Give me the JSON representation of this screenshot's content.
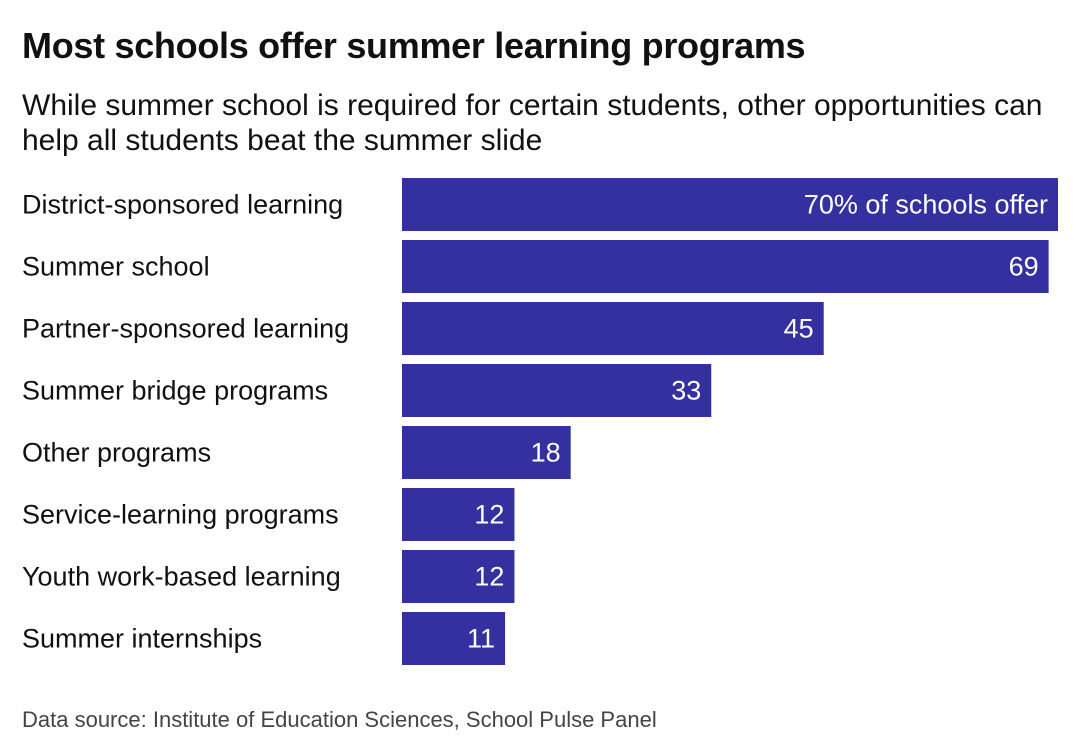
{
  "title": "Most schools offer summer learning programs",
  "subtitle": "While summer school is required for certain students, other opportunities can help all students beat the summer slide",
  "source": "Data source: Institute of Education Sciences, School Pulse Panel",
  "colors": {
    "bar": "#3430a0",
    "value_text": "#ffffff",
    "label_text": "#111111"
  },
  "chart_data": {
    "type": "bar",
    "orientation": "horizontal",
    "title": "Most schools offer summer learning programs",
    "subtitle": "While summer school is required for certain students, other opportunities can help all students beat the summer slide",
    "categories": [
      "District-sponsored learning",
      "Summer school",
      "Partner-sponsored learning",
      "Summer bridge programs",
      "Other programs",
      "Service-learning programs",
      "Youth work-based learning",
      "Summer internships"
    ],
    "values": [
      70,
      69,
      45,
      33,
      18,
      12,
      12,
      11
    ],
    "value_labels": [
      "70% of schools offer",
      "69",
      "45",
      "33",
      "18",
      "12",
      "12",
      "11"
    ],
    "xlim": [
      0,
      70
    ],
    "grid": false,
    "legend": "none"
  }
}
